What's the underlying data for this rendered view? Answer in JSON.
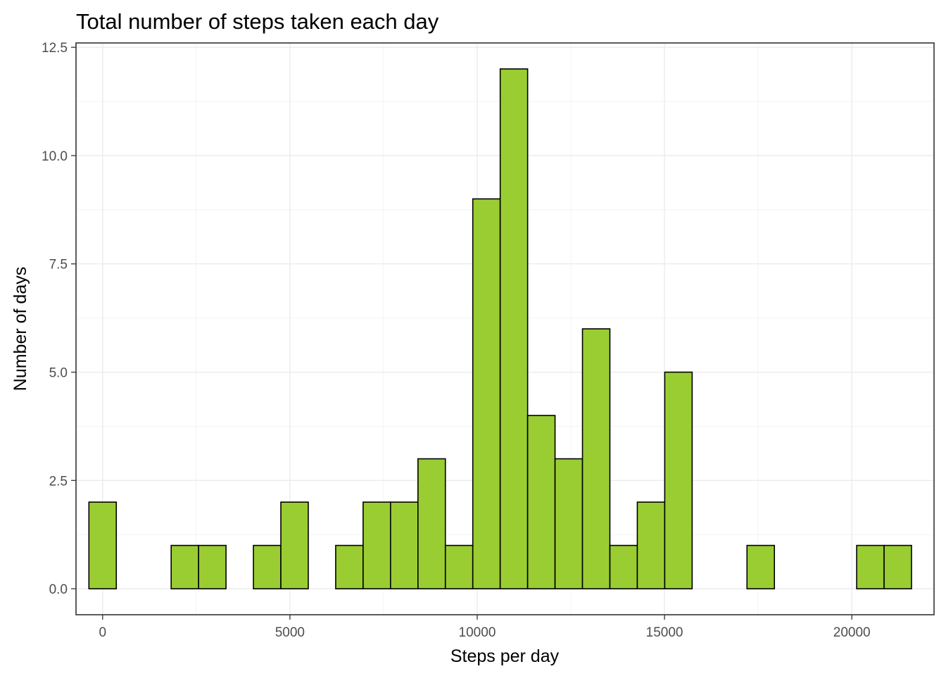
{
  "chart_data": {
    "type": "bar",
    "title": "Total number of steps taken each day",
    "xlabel": "Steps per day",
    "ylabel": "Number of days",
    "xlim": [
      -710,
      22195
    ],
    "ylim": [
      -0.6,
      12.6
    ],
    "x_ticks": [
      0,
      5000,
      10000,
      15000,
      20000
    ],
    "x_tick_labels": [
      "0",
      "5000",
      "10000",
      "15000",
      "20000"
    ],
    "y_ticks": [
      0,
      2.5,
      5,
      7.5,
      10,
      12.5
    ],
    "y_tick_labels": [
      "0.0",
      "2.5",
      "5.0",
      "7.5",
      "10.0",
      "12.5"
    ],
    "bin_width": 732,
    "bin_centers": [
      0,
      732,
      1464,
      2196,
      2928,
      3660,
      4392,
      5124,
      5856,
      6588,
      7320,
      8052,
      8784,
      9516,
      10248,
      10980,
      11712,
      12444,
      13176,
      13908,
      14640,
      15372,
      16104,
      16836,
      17568,
      18300,
      19032,
      19764,
      20496,
      21228
    ],
    "values": [
      2,
      0,
      0,
      1,
      1,
      0,
      1,
      2,
      0,
      1,
      2,
      2,
      3,
      1,
      9,
      12,
      4,
      3,
      6,
      1,
      2,
      5,
      0,
      0,
      1,
      0,
      0,
      0,
      1,
      1
    ],
    "fill_color": "#9acd32",
    "outline_color": "#000000",
    "grid": true,
    "legend": "none"
  }
}
